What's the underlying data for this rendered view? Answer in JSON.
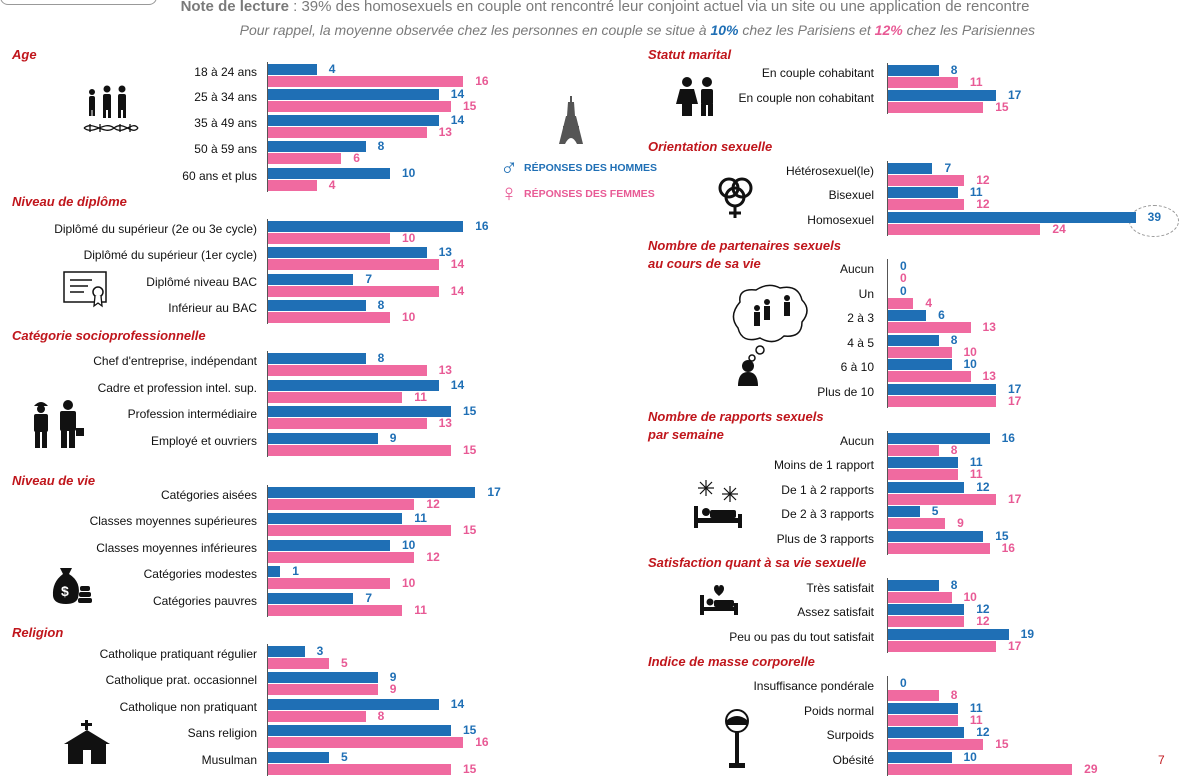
{
  "note": {
    "label": "Note de lecture",
    "text": " : 39% des homosexuels en couple ont rencontré leur conjoint actuel via un site ou une application de rencontre",
    "reminder_pre": "Pour rappel, la moyenne observée chez les personnes en couple se situe à ",
    "reminder_men": "10%",
    "reminder_mid": " chez les Parisiens et ",
    "reminder_women": "12%",
    "reminder_post": " chez les Parisiennes"
  },
  "legend": {
    "men": "RÉPONSES DES HOMMES",
    "women": "RÉPONSES DES FEMMES"
  },
  "colors": {
    "men": "#1f6fb5",
    "women": "#f06aa0",
    "section": "#c0161c"
  },
  "icons": [
    "family-icon",
    "dna-icon",
    "diploma-icon",
    "workers-icon",
    "money-bag-icon",
    "church-icon",
    "eiffel-tower-icon",
    "couple-icon",
    "gender-symbols-icon",
    "thought-bubble-icon",
    "bed-fireworks-icon",
    "bed-heart-icon",
    "scale-icon"
  ],
  "page_number": "7",
  "chart_data": [
    {
      "type": "bar",
      "title": "Age",
      "categories": [
        "18 à 24 ans",
        "25 à 34 ans",
        "35 à 49 ans",
        "50 à 59 ans",
        "60 ans et plus"
      ],
      "series": [
        {
          "name": "RÉPONSES DES HOMMES",
          "values": [
            4,
            14,
            14,
            8,
            10
          ]
        },
        {
          "name": "RÉPONSES DES FEMMES",
          "values": [
            16,
            15,
            13,
            6,
            4
          ]
        }
      ]
    },
    {
      "type": "bar",
      "title": "Niveau de diplôme",
      "categories": [
        "Diplômé du supérieur (2e ou 3e cycle)",
        "Diplômé du supérieur (1er cycle)",
        "Diplômé niveau BAC",
        "Inférieur au BAC"
      ],
      "series": [
        {
          "name": "RÉPONSES DES HOMMES",
          "values": [
            16,
            13,
            7,
            8
          ]
        },
        {
          "name": "RÉPONSES DES FEMMES",
          "values": [
            10,
            14,
            14,
            10
          ]
        }
      ]
    },
    {
      "type": "bar",
      "title": "Catégorie socioprofessionnelle",
      "categories": [
        "Chef d'entreprise, indépendant",
        "Cadre et profession intel. sup.",
        "Profession intermédiaire",
        "Employé et ouvriers"
      ],
      "series": [
        {
          "name": "RÉPONSES DES HOMMES",
          "values": [
            8,
            14,
            15,
            9
          ]
        },
        {
          "name": "RÉPONSES DES FEMMES",
          "values": [
            13,
            11,
            13,
            15
          ]
        }
      ]
    },
    {
      "type": "bar",
      "title": "Niveau de vie",
      "categories": [
        "Catégories aisées",
        "Classes moyennes supérieures",
        "Classes moyennes inférieures",
        "Catégories modestes",
        "Catégories pauvres"
      ],
      "series": [
        {
          "name": "RÉPONSES DES HOMMES",
          "values": [
            17,
            11,
            10,
            1,
            7
          ]
        },
        {
          "name": "RÉPONSES DES FEMMES",
          "values": [
            12,
            15,
            12,
            10,
            11
          ]
        }
      ]
    },
    {
      "type": "bar",
      "title": "Religion",
      "categories": [
        "Catholique pratiquant régulier",
        "Catholique prat. occasionnel",
        "Catholique non pratiquant",
        "Sans religion",
        "Musulman"
      ],
      "series": [
        {
          "name": "RÉPONSES DES HOMMES",
          "values": [
            3,
            9,
            14,
            15,
            5
          ]
        },
        {
          "name": "RÉPONSES DES FEMMES",
          "values": [
            5,
            9,
            8,
            16,
            15
          ]
        }
      ]
    },
    {
      "type": "bar",
      "title": "Statut marital",
      "categories": [
        "En couple cohabitant",
        "En couple non cohabitant"
      ],
      "series": [
        {
          "name": "RÉPONSES DES HOMMES",
          "values": [
            8,
            17
          ]
        },
        {
          "name": "RÉPONSES DES FEMMES",
          "values": [
            11,
            15
          ]
        }
      ]
    },
    {
      "type": "bar",
      "title": "Orientation sexuelle",
      "categories": [
        "Hétérosexuel(le)",
        "Bisexuel",
        "Homosexuel"
      ],
      "series": [
        {
          "name": "RÉPONSES DES HOMMES",
          "values": [
            7,
            11,
            39
          ]
        },
        {
          "name": "RÉPONSES DES FEMMES",
          "values": [
            12,
            12,
            24
          ]
        }
      ]
    },
    {
      "type": "bar",
      "title": "Nombre de partenaires sexuels au cours de sa vie",
      "title_lines": [
        "Nombre de partenaires sexuels",
        "au cours de sa vie"
      ],
      "categories": [
        "Aucun",
        "Un",
        "2 à 3",
        "4 à 5",
        "6 à 10",
        "Plus de 10"
      ],
      "series": [
        {
          "name": "RÉPONSES DES HOMMES",
          "values": [
            0,
            0,
            6,
            8,
            10,
            17
          ]
        },
        {
          "name": "RÉPONSES DES FEMMES",
          "values": [
            0,
            4,
            13,
            10,
            13,
            17
          ]
        }
      ]
    },
    {
      "type": "bar",
      "title": "Nombre de rapports sexuels par semaine",
      "title_lines": [
        "Nombre de rapports sexuels",
        "par semaine"
      ],
      "categories": [
        "Aucun",
        "Moins de 1 rapport",
        "De 1 à 2 rapports",
        "De 2 à 3 rapports",
        "Plus de 3 rapports"
      ],
      "series": [
        {
          "name": "RÉPONSES DES HOMMES",
          "values": [
            16,
            11,
            12,
            5,
            15
          ]
        },
        {
          "name": "RÉPONSES DES FEMMES",
          "values": [
            8,
            11,
            17,
            9,
            16
          ]
        }
      ]
    },
    {
      "type": "bar",
      "title": "Satisfaction quant à sa vie sexuelle",
      "categories": [
        "Très satisfait",
        "Assez satisfait",
        "Peu ou pas du tout satisfait"
      ],
      "series": [
        {
          "name": "RÉPONSES DES HOMMES",
          "values": [
            8,
            12,
            19
          ]
        },
        {
          "name": "RÉPONSES DES FEMMES",
          "values": [
            10,
            12,
            17
          ]
        }
      ]
    },
    {
      "type": "bar",
      "title": "Indice de masse corporelle",
      "categories": [
        "Insuffisance pondérale",
        "Poids normal",
        "Surpoids",
        "Obésité"
      ],
      "series": [
        {
          "name": "RÉPONSES DES HOMMES",
          "values": [
            0,
            11,
            12,
            10
          ]
        },
        {
          "name": "RÉPONSES DES FEMMES",
          "values": [
            8,
            11,
            15,
            29
          ]
        }
      ]
    }
  ]
}
